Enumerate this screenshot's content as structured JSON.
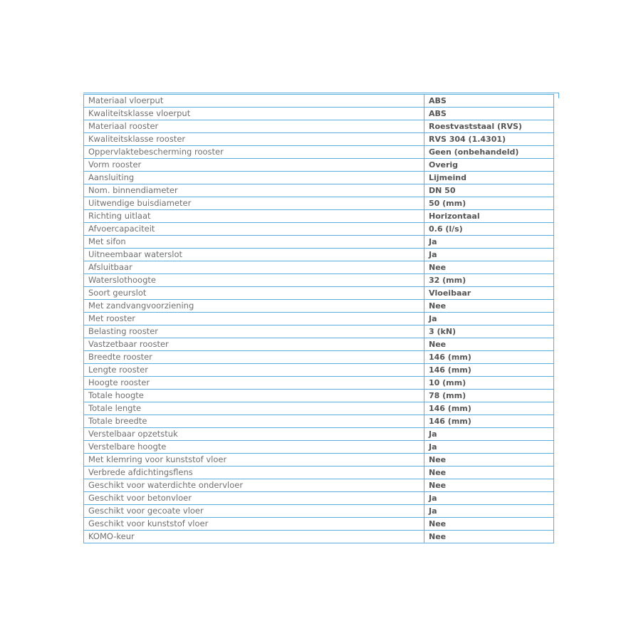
{
  "accent_color": "#5aaee0",
  "specs": [
    {
      "label": "Materiaal vloerput",
      "value": "ABS"
    },
    {
      "label": "Kwaliteitsklasse vloerput",
      "value": "ABS"
    },
    {
      "label": "Materiaal rooster",
      "value": "Roestvaststaal (RVS)"
    },
    {
      "label": "Kwaliteitsklasse rooster",
      "value": "RVS 304 (1.4301)"
    },
    {
      "label": "Oppervlaktebescherming rooster",
      "value": "Geen (onbehandeld)"
    },
    {
      "label": "Vorm rooster",
      "value": "Overig"
    },
    {
      "label": "Aansluiting",
      "value": "Lijmeind"
    },
    {
      "label": "Nom. binnendiameter",
      "value": "DN 50"
    },
    {
      "label": "Uitwendige buisdiameter",
      "value": "50 (mm)"
    },
    {
      "label": "Richting uitlaat",
      "value": "Horizontaal"
    },
    {
      "label": "Afvoercapaciteit",
      "value": "0.6 (l/s)"
    },
    {
      "label": "Met sifon",
      "value": "Ja"
    },
    {
      "label": "Uitneembaar waterslot",
      "value": "Ja"
    },
    {
      "label": "Afsluitbaar",
      "value": "Nee"
    },
    {
      "label": "Waterslothoogte",
      "value": "32 (mm)"
    },
    {
      "label": "Soort geurslot",
      "value": "Vloeibaar"
    },
    {
      "label": "Met zandvangvoorziening",
      "value": "Nee"
    },
    {
      "label": "Met rooster",
      "value": "Ja"
    },
    {
      "label": "Belasting rooster",
      "value": "3 (kN)"
    },
    {
      "label": "Vastzetbaar rooster",
      "value": "Nee"
    },
    {
      "label": "Breedte rooster",
      "value": "146 (mm)"
    },
    {
      "label": "Lengte rooster",
      "value": "146 (mm)"
    },
    {
      "label": "Hoogte rooster",
      "value": "10 (mm)"
    },
    {
      "label": "Totale hoogte",
      "value": "78 (mm)"
    },
    {
      "label": "Totale lengte",
      "value": "146 (mm)"
    },
    {
      "label": "Totale breedte",
      "value": "146 (mm)"
    },
    {
      "label": "Verstelbaar opzetstuk",
      "value": "Ja"
    },
    {
      "label": "Verstelbare hoogte",
      "value": "Ja"
    },
    {
      "label": "Met klemring voor kunststof vloer",
      "value": "Nee"
    },
    {
      "label": "Verbrede afdichtingsflens",
      "value": "Nee"
    },
    {
      "label": "Geschikt voor waterdichte ondervloer",
      "value": "Nee"
    },
    {
      "label": "Geschikt voor betonvloer",
      "value": "Ja"
    },
    {
      "label": "Geschikt voor gecoate vloer",
      "value": "Ja"
    },
    {
      "label": "Geschikt voor kunststof vloer",
      "value": "Nee"
    },
    {
      "label": "KOMO-keur",
      "value": "Nee"
    }
  ]
}
